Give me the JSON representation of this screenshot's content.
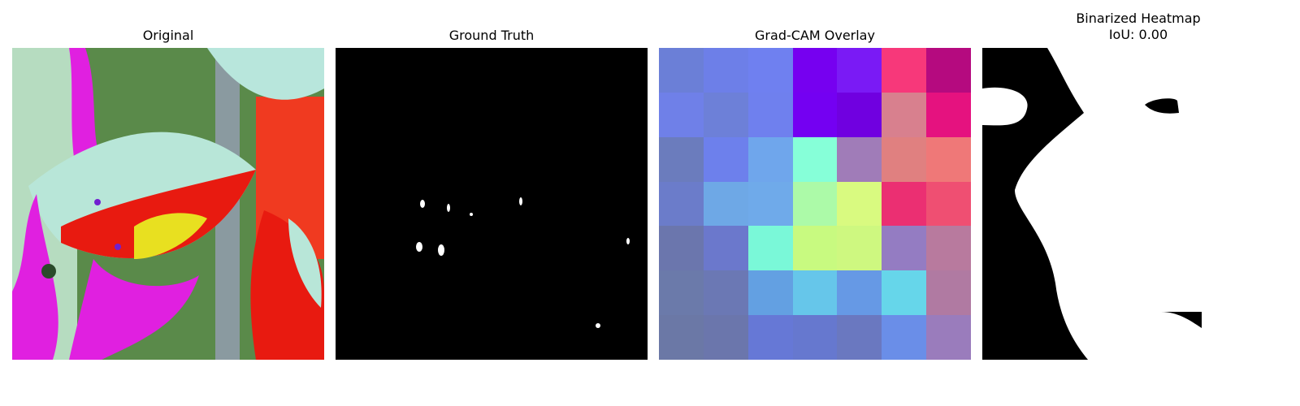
{
  "panels": [
    {
      "title": "Original"
    },
    {
      "title": "Ground Truth"
    },
    {
      "title": "Grad-CAM Overlay"
    },
    {
      "title": "Binarized Heatmap",
      "subtitle": "IoU: 0.00"
    }
  ],
  "gradcam_colors": [
    [
      "#6b7fd7",
      "#6d7fe8",
      "#6f80f0",
      "#7600f0",
      "#7a1af5",
      "#f7387a",
      "#b50a7f"
    ],
    [
      "#6f80e8",
      "#6d80d8",
      "#6f80ee",
      "#7400f2",
      "#7000e0",
      "#d8808e",
      "#e5127f"
    ],
    [
      "#6b7cbd",
      "#6d80ec",
      "#6fa6ec",
      "#86ffd8",
      "#a07cb8",
      "#e08080",
      "#ef7878"
    ],
    [
      "#6b7cca",
      "#6ea8e6",
      "#6faaea",
      "#acfaa8",
      "#d9fa80",
      "#eb2f72",
      "#ef4f72"
    ],
    [
      "#6b76ad",
      "#6b78cc",
      "#7af8d8",
      "#c8fa80",
      "#cef880",
      "#947cc2",
      "#b87a9e"
    ],
    [
      "#6b7aaa",
      "#6b78b4",
      "#63a0e2",
      "#66c6ea",
      "#6699e5",
      "#66d6ea",
      "#b07aa2"
    ],
    [
      "#6b78a6",
      "#6b76ac",
      "#6678d6",
      "#6678cf",
      "#6a78c0",
      "#6a8ee8",
      "#9a7cbc"
    ]
  ]
}
